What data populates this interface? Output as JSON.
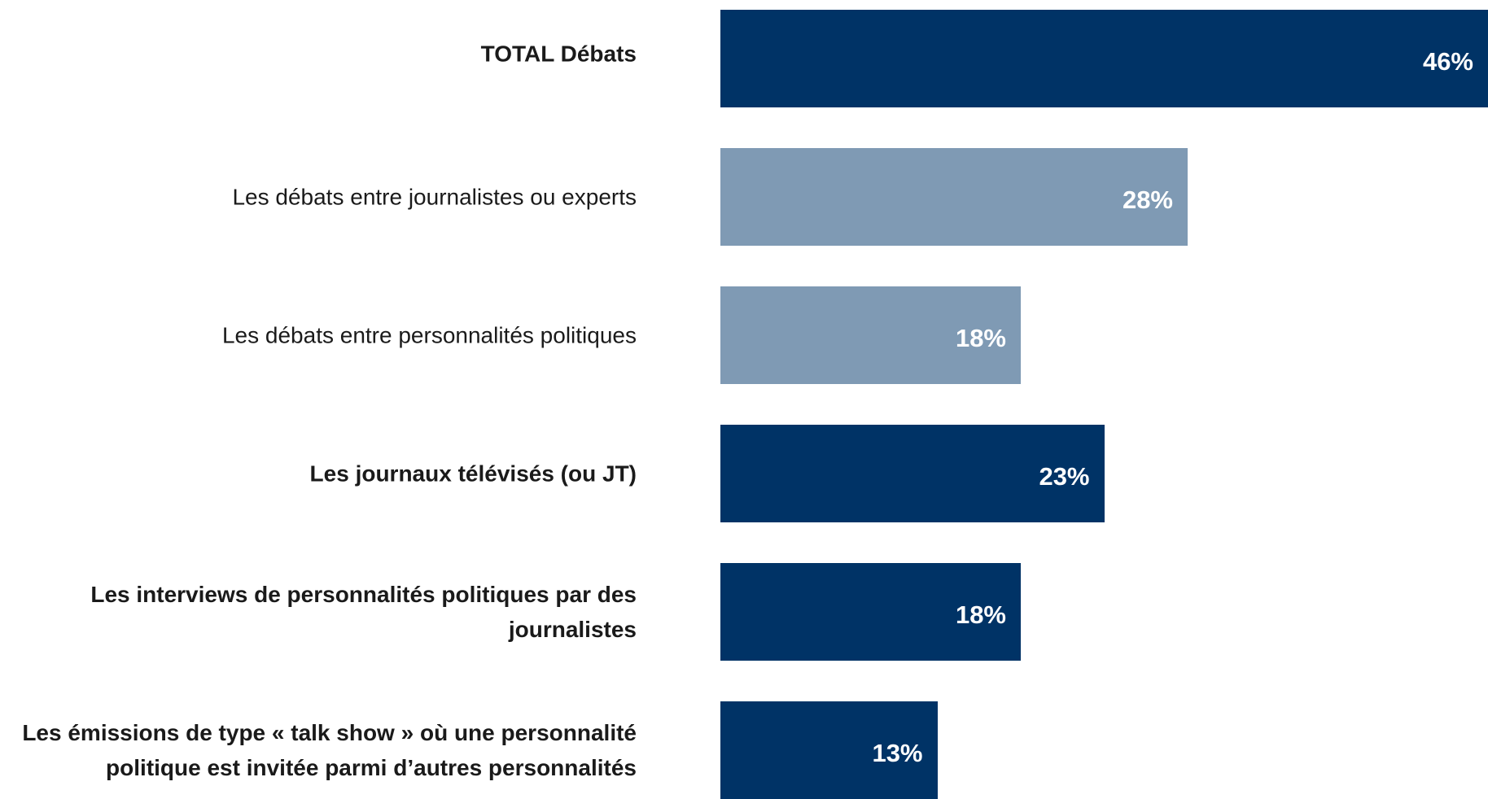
{
  "chart_data": {
    "type": "bar",
    "orientation": "horizontal",
    "categories": [
      "TOTAL Débats",
      "Les débats entre journalistes ou experts",
      "Les débats entre personnalités politiques",
      "Les journaux télévisés (ou JT)",
      "Les interviews de personnalités politiques par des journalistes",
      "Les émissions de type « talk show » où une personnalité politique est invitée parmi d’autres personnalités"
    ],
    "values": [
      46,
      28,
      18,
      23,
      18,
      13
    ],
    "value_labels": [
      "46%",
      "28%",
      "18%",
      "23%",
      "18%",
      "13%"
    ],
    "bold": [
      true,
      false,
      false,
      true,
      true,
      true
    ],
    "bar_colors": [
      "#003366",
      "#7f9ab4",
      "#7f9ab4",
      "#003366",
      "#003366",
      "#003366"
    ],
    "value_label_color": "#ffffff",
    "grid": false,
    "legend": "none"
  }
}
